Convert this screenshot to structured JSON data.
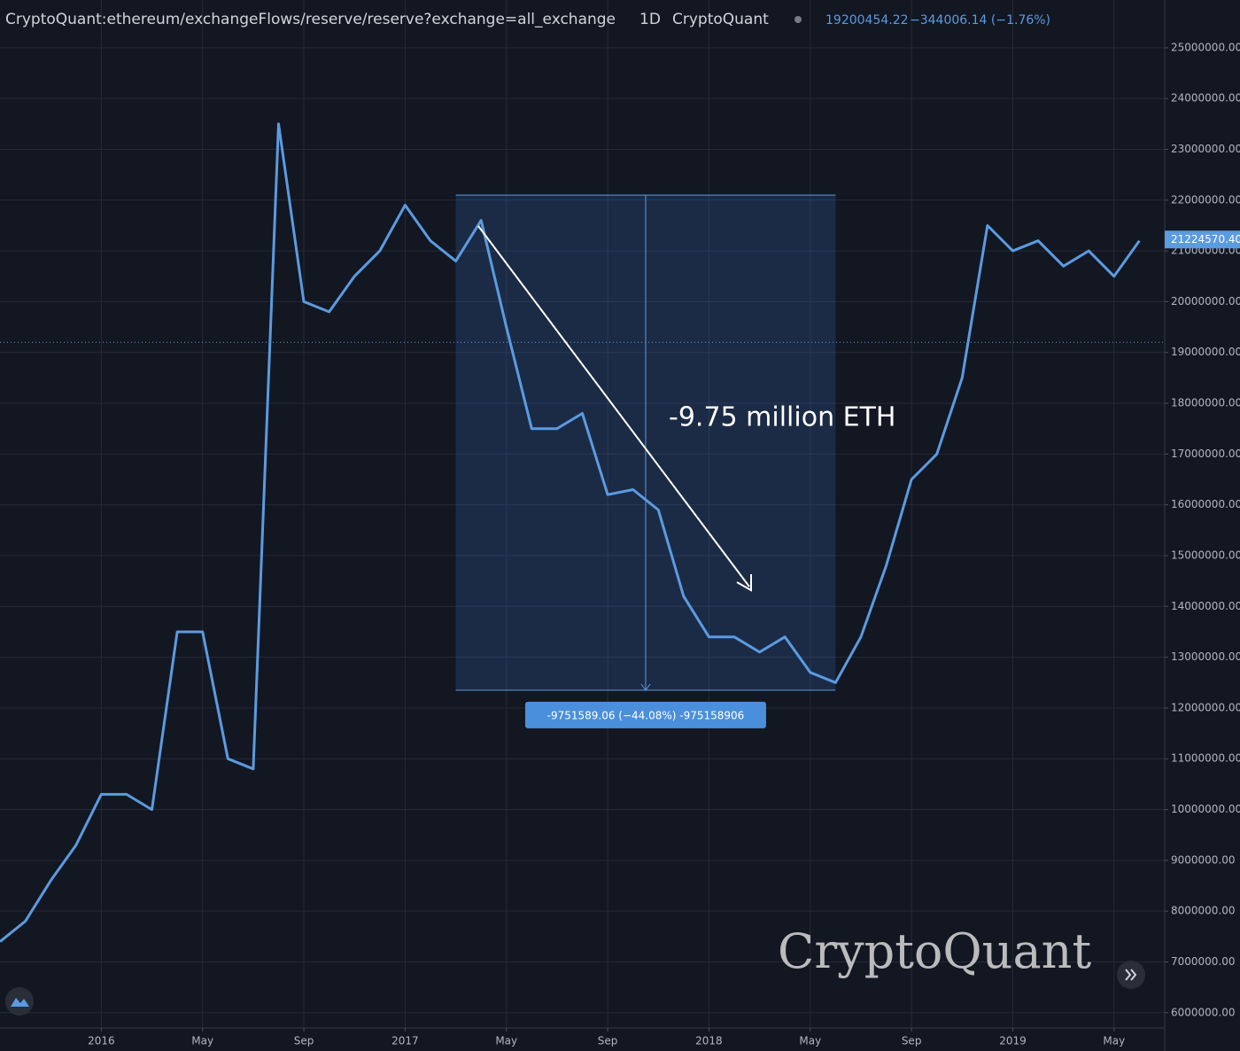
{
  "chart_data": {
    "type": "line",
    "header": {
      "symbol": "CryptoQuant:ethereum/exchangeFlows/reserve/reserve?exchange=all_exchange",
      "interval": "1D",
      "source": "CryptoQuant",
      "value": 19200454.22,
      "change": "−344006.14 (−1.76%)"
    },
    "last_value": {
      "value": 21224570.4,
      "label": "21224570.40"
    },
    "annotation": "-9.75 million ETH",
    "watermark": "CryptoQuant",
    "measure": {
      "x": [
        "2017-03",
        "2018-06"
      ],
      "y": [
        22100000,
        12350000
      ],
      "label": "-9751589.06 (−44.08%) -975158906"
    },
    "color": "#5b9be0",
    "grid": true,
    "x": [
      "2015-09",
      "2015-10",
      "2015-11",
      "2015-12",
      "2016-01",
      "2016-02",
      "2016-03",
      "2016-04",
      "2016-05",
      "2016-06",
      "2016-07",
      "2016-08",
      "2016-09",
      "2016-10",
      "2016-11",
      "2016-12",
      "2017-01",
      "2017-02",
      "2017-03",
      "2017-04",
      "2017-05",
      "2017-06",
      "2017-07",
      "2017-08",
      "2017-09",
      "2017-10",
      "2017-11",
      "2017-12",
      "2018-01",
      "2018-02",
      "2018-03",
      "2018-04",
      "2018-05",
      "2018-06",
      "2018-07",
      "2018-08",
      "2018-09",
      "2018-10",
      "2018-11",
      "2018-12",
      "2019-01",
      "2019-02",
      "2019-03",
      "2019-04",
      "2019-05",
      "2019-06"
    ],
    "values": [
      7400000,
      7800000,
      8600000,
      9300000,
      10300000,
      10300000,
      10000000,
      13500000,
      13500000,
      11000000,
      10800000,
      23500000,
      20000000,
      19800000,
      20500000,
      21000000,
      21900000,
      21200000,
      20800000,
      21600000,
      19500000,
      17500000,
      17500000,
      17800000,
      16200000,
      16300000,
      15900000,
      14200000,
      13400000,
      13400000,
      13100000,
      13400000,
      12700000,
      12500000,
      13400000,
      14800000,
      16500000,
      17000000,
      18500000,
      21500000,
      21000000,
      21200000,
      20700000,
      21000000,
      20500000,
      21200000
    ],
    "xlim": [
      "2015-09",
      "2019-07"
    ],
    "xticks": [
      {
        "value": "2016-01",
        "label": "2016"
      },
      {
        "value": "2016-05",
        "label": "May"
      },
      {
        "value": "2016-09",
        "label": "Sep"
      },
      {
        "value": "2017-01",
        "label": "2017"
      },
      {
        "value": "2017-05",
        "label": "May"
      },
      {
        "value": "2017-09",
        "label": "Sep"
      },
      {
        "value": "2018-01",
        "label": "2018"
      },
      {
        "value": "2018-05",
        "label": "May"
      },
      {
        "value": "2018-09",
        "label": "Sep"
      },
      {
        "value": "2019-01",
        "label": "2019"
      },
      {
        "value": "2019-05",
        "label": "May"
      }
    ],
    "ylim": [
      5700000,
      25940000
    ],
    "yticks": [
      {
        "value": 6000000,
        "label": "6000000.00"
      },
      {
        "value": 7000000,
        "label": "7000000.00"
      },
      {
        "value": 8000000,
        "label": "8000000.00"
      },
      {
        "value": 9000000,
        "label": "9000000.00"
      },
      {
        "value": 10000000,
        "label": "10000000.00"
      },
      {
        "value": 11000000,
        "label": "11000000.00"
      },
      {
        "value": 12000000,
        "label": "12000000.00"
      },
      {
        "value": 13000000,
        "label": "13000000.00"
      },
      {
        "value": 14000000,
        "label": "14000000.00"
      },
      {
        "value": 15000000,
        "label": "15000000.00"
      },
      {
        "value": 16000000,
        "label": "16000000.00"
      },
      {
        "value": 17000000,
        "label": "17000000.00"
      },
      {
        "value": 18000000,
        "label": "18000000.00"
      },
      {
        "value": 19000000,
        "label": "19000000.00"
      },
      {
        "value": 20000000,
        "label": "20000000.00"
      },
      {
        "value": 21000000,
        "label": "21000000.00"
      },
      {
        "value": 22000000,
        "label": "22000000.00"
      },
      {
        "value": 23000000,
        "label": "23000000.00"
      },
      {
        "value": 24000000,
        "label": "24000000.00"
      },
      {
        "value": 25000000,
        "label": "25000000.00"
      }
    ]
  }
}
